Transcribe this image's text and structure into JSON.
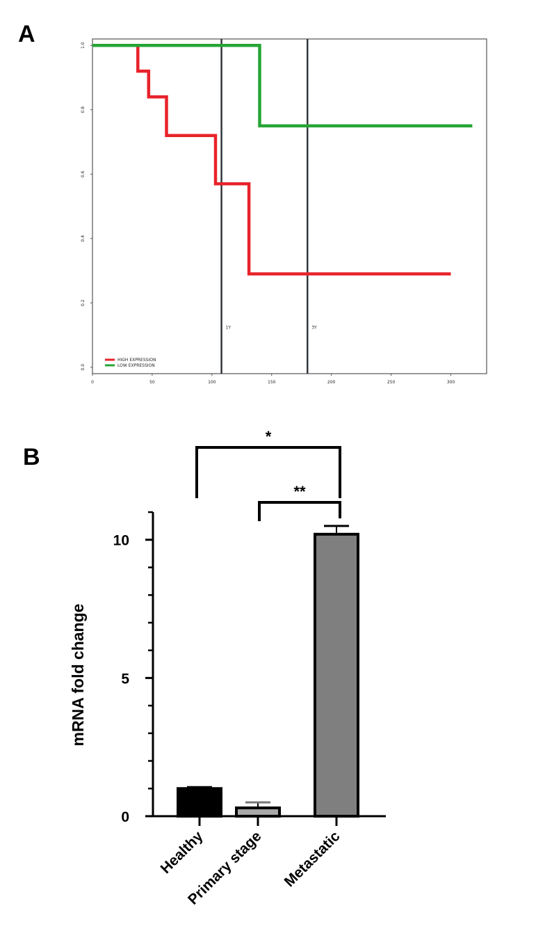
{
  "panels": {
    "a_label": "A",
    "b_label": "B"
  },
  "chart_data": [
    {
      "type": "line",
      "panel": "A",
      "title": "",
      "xlabel": "",
      "ylabel": "",
      "xlim": [
        0,
        330
      ],
      "ylim": [
        -0.02,
        1.02
      ],
      "x_ticks": [
        0,
        50,
        100,
        150,
        200,
        250,
        300
      ],
      "x_tick_labels": [
        "0",
        "50",
        "100",
        "150",
        "200",
        "250",
        "300"
      ],
      "y_ticks": [
        0.0,
        0.2,
        0.4,
        0.6,
        0.8,
        1.0
      ],
      "y_tick_labels": [
        "0.0",
        "0.2",
        "0.4",
        "0.6",
        "0.8",
        "1.0"
      ],
      "grid": false,
      "legend_position": "bottom-left",
      "series": [
        {
          "name": "HIGH EXPRESSION",
          "color": "#e8232a",
          "points": [
            [
              0,
              1.0
            ],
            [
              38,
              1.0
            ],
            [
              38,
              0.92
            ],
            [
              47,
              0.92
            ],
            [
              47,
              0.84
            ],
            [
              62,
              0.84
            ],
            [
              62,
              0.72
            ],
            [
              103,
              0.72
            ],
            [
              103,
              0.57
            ],
            [
              131,
              0.57
            ],
            [
              131,
              0.29
            ],
            [
              300,
              0.29
            ]
          ]
        },
        {
          "name": "LOW EXPRESSION",
          "color": "#26a536",
          "points": [
            [
              0,
              1.0
            ],
            [
              140,
              1.0
            ],
            [
              140,
              0.75
            ],
            [
              318,
              0.75
            ]
          ]
        }
      ],
      "vertical_lines": [
        {
          "x": 108,
          "label": "1Y"
        },
        {
          "x": 180,
          "label": "3Y"
        }
      ]
    },
    {
      "type": "bar",
      "panel": "B",
      "title": "",
      "xlabel": "",
      "ylabel": "mRNA fold change",
      "ylim": [
        0,
        11
      ],
      "y_ticks": [
        0,
        5,
        10
      ],
      "y_tick_labels": [
        "0",
        "5",
        "10"
      ],
      "categories": [
        "Healthy",
        "Primary stage",
        "Metastatic"
      ],
      "values": [
        1.0,
        0.3,
        10.2
      ],
      "errors": [
        0.05,
        0.2,
        0.3
      ],
      "bar_colors": [
        "#000000",
        "#a9a9a9",
        "#7f7f7f"
      ],
      "significance": [
        {
          "from": "Healthy",
          "to": "Metastatic",
          "label": "*"
        },
        {
          "from": "Primary stage",
          "to": "Metastatic",
          "label": "**"
        }
      ]
    }
  ]
}
